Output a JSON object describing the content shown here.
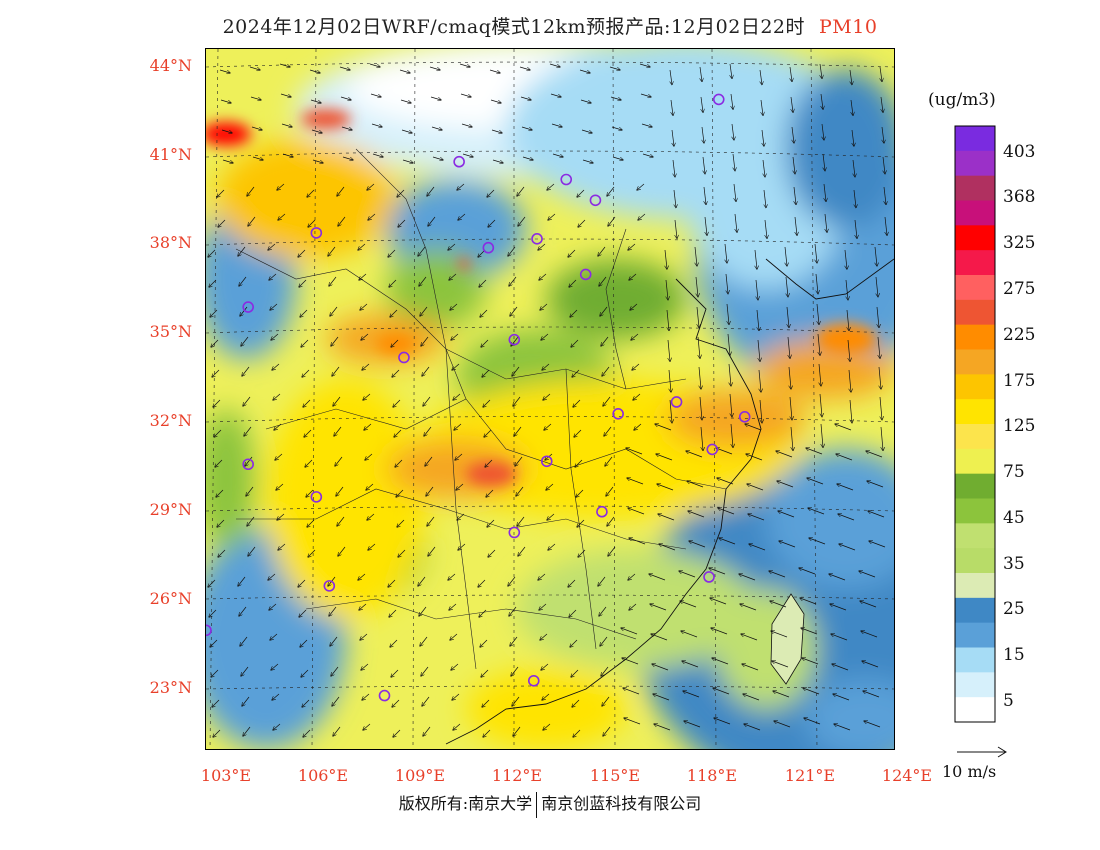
{
  "title": {
    "main": "2024年12月02日WRF/cmaq模式12km预报产品:12月02日22时",
    "pollutant": "PM10"
  },
  "lat_labels": [
    "44°N",
    "41°N",
    "38°N",
    "35°N",
    "32°N",
    "29°N",
    "26°N",
    "23°N"
  ],
  "lon_labels": [
    "103°E",
    "106°E",
    "109°E",
    "112°E",
    "115°E",
    "118°E",
    "121°E",
    "124°E"
  ],
  "colorbar": {
    "units": "(ug/m3)",
    "labels": [
      "403",
      "368",
      "325",
      "275",
      "225",
      "175",
      "125",
      "75",
      "45",
      "35",
      "25",
      "15",
      "5"
    ],
    "colors": [
      "#7a2be0",
      "#9b30c8",
      "#b03060",
      "#c8107a",
      "#ff0000",
      "#f5194a",
      "#ff6060",
      "#ee5533",
      "#ff8c00",
      "#f5a623",
      "#fdc500",
      "#ffe400",
      "#fce44c",
      "#eef050",
      "#70ad30",
      "#8cc43c",
      "#c0e070",
      "#b8dc68",
      "#dcebb4",
      "#3f88c5",
      "#5aa0d8",
      "#a6dcf5",
      "#d6f0fb",
      "#ffffff"
    ]
  },
  "wind_reference": {
    "label": "10 m/s"
  },
  "copyright": {
    "prefix": "版权所有:南京大学",
    "suffix": "南京创蓝科技有限公司"
  },
  "city_markers": [
    {
      "lon": 118.6,
      "lat": 42.9
    },
    {
      "lon": 110.6,
      "lat": 40.8
    },
    {
      "lon": 113.9,
      "lat": 40.2
    },
    {
      "lon": 114.8,
      "lat": 39.5
    },
    {
      "lon": 106.2,
      "lat": 38.4
    },
    {
      "lon": 111.5,
      "lat": 37.9
    },
    {
      "lon": 113.0,
      "lat": 38.2
    },
    {
      "lon": 114.5,
      "lat": 37.0
    },
    {
      "lon": 104.1,
      "lat": 35.9
    },
    {
      "lon": 112.3,
      "lat": 34.8
    },
    {
      "lon": 108.9,
      "lat": 34.2
    },
    {
      "lon": 115.5,
      "lat": 32.3
    },
    {
      "lon": 117.3,
      "lat": 32.7
    },
    {
      "lon": 119.4,
      "lat": 32.2
    },
    {
      "lon": 118.4,
      "lat": 31.1
    },
    {
      "lon": 104.1,
      "lat": 30.6
    },
    {
      "lon": 113.3,
      "lat": 30.7
    },
    {
      "lon": 106.2,
      "lat": 29.5
    },
    {
      "lon": 115.0,
      "lat": 29.0
    },
    {
      "lon": 112.3,
      "lat": 28.3
    },
    {
      "lon": 106.6,
      "lat": 26.5
    },
    {
      "lon": 118.3,
      "lat": 26.8
    },
    {
      "lon": 102.8,
      "lat": 25.0
    },
    {
      "lon": 108.3,
      "lat": 22.8
    },
    {
      "lon": 112.9,
      "lat": 23.3
    }
  ]
}
